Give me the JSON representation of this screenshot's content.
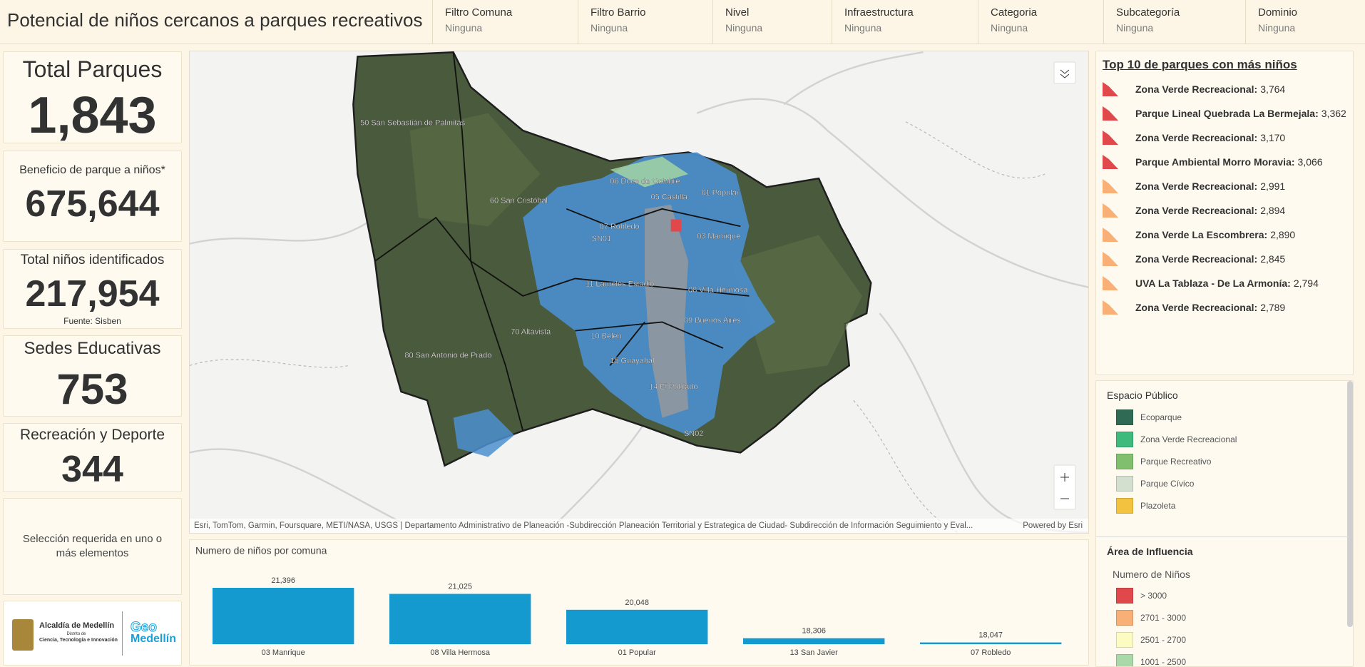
{
  "header": {
    "title": "Potencial de niños cercanos a parques recreativos",
    "filters": [
      {
        "label": "Filtro Comuna",
        "value": "Ninguna"
      },
      {
        "label": "Filtro Barrio",
        "value": "Ninguna"
      },
      {
        "label": "Nivel",
        "value": "Ninguna"
      },
      {
        "label": "Infraestructura",
        "value": "Ninguna"
      },
      {
        "label": "Categoria",
        "value": "Ninguna"
      },
      {
        "label": "Subcategoría",
        "value": "Ninguna"
      },
      {
        "label": "Dominio",
        "value": "Ninguna"
      }
    ]
  },
  "kpis": [
    {
      "label": "Total Parques",
      "value": "1,843"
    },
    {
      "label": "Beneficio de parque a niños*",
      "value": "675,644"
    },
    {
      "label": "Total niños identificados",
      "value": "217,954",
      "note": "Fuente: Sisben"
    },
    {
      "label": "Sedes Educativas",
      "value": "753"
    },
    {
      "label": "Recreación y Deporte",
      "value": "344"
    }
  ],
  "selection_message": "Selección requerida en uno o más elementos",
  "logo": {
    "name": "Alcaldía de Medellín",
    "line1": "Distrito de",
    "line2": "Ciencia, Tecnología e Innovación",
    "brand_top": "Geo",
    "brand_bottom": "Medellín"
  },
  "map": {
    "labels": [
      "50 San Sebastián de Palmitas",
      "60 San Cristóbal",
      "06 Doce de Octubre",
      "05 Castilla",
      "01 Popular",
      "07 Robledo",
      "SN01",
      "03 Manrique",
      "11 Laureles Estadio",
      "08 Villa Hermosa",
      "70 Altavista",
      "10 Belén",
      "09 Buenos Aires",
      "80 San Antonio de Prado",
      "15 Guayabal",
      "14 El Poblado",
      "SN02"
    ],
    "attribution": "Esri, TomTom, Garmin, Foursquare, METI/NASA, USGS | Departamento Administrativo de Planeación -Subdirección Planeación Territorial y Estrategica de Ciudad- Subdirección de Información Seguimiento y Eval...",
    "powered_by": "Powered by Esri"
  },
  "top10": {
    "title": "Top 10 de parques con más niños",
    "items": [
      {
        "name": "Zona Verde Recreacional:",
        "value": "3,764",
        "color": "#e0484b"
      },
      {
        "name": "Parque Lineal Quebrada La Bermejala:",
        "value": "3,362",
        "color": "#e0484b"
      },
      {
        "name": "Zona Verde Recreacional:",
        "value": "3,170",
        "color": "#e0484b"
      },
      {
        "name": "Parque Ambiental Morro Moravia:",
        "value": "3,066",
        "color": "#e0484b"
      },
      {
        "name": "Zona Verde Recreacional:",
        "value": "2,991",
        "color": "#f8b077"
      },
      {
        "name": "Zona Verde Recreacional:",
        "value": "2,894",
        "color": "#f8b077"
      },
      {
        "name": "Zona Verde La Escombrera:",
        "value": "2,890",
        "color": "#f8b077"
      },
      {
        "name": "Zona Verde Recreacional:",
        "value": "2,845",
        "color": "#f8b077"
      },
      {
        "name": "UVA La Tablaza - De La Armonía:",
        "value": "2,794",
        "color": "#f8b077"
      },
      {
        "name": "Zona Verde Recreacional:",
        "value": "2,789",
        "color": "#f8b077"
      }
    ]
  },
  "legend": {
    "public_space": {
      "title": "Espacio Público",
      "items": [
        {
          "label": "Ecoparque",
          "color": "#2f6a55"
        },
        {
          "label": "Zona Verde Recreacional",
          "color": "#3dba7c"
        },
        {
          "label": "Parque Recreativo",
          "color": "#7fbf6e"
        },
        {
          "label": "Parque Cívico",
          "color": "#d3e0cf"
        },
        {
          "label": "Plazoleta",
          "color": "#f3c23e"
        }
      ]
    },
    "influence": {
      "title": "Área de Influencia",
      "subtitle": "Numero de Niños",
      "items": [
        {
          "label": "> 3000",
          "color": "#e0484b"
        },
        {
          "label": "2701 - 3000",
          "color": "#f8b077"
        },
        {
          "label": "2501 - 2700",
          "color": "#fcfbc2"
        },
        {
          "label": "1001 - 2500",
          "color": "#a9d8a9"
        }
      ]
    }
  },
  "chart_data": {
    "type": "bar",
    "title": "Numero de niños por comuna",
    "categories": [
      "03 Manrique",
      "08 Villa Hermosa",
      "01 Popular",
      "13 San Javier",
      "07 Robledo"
    ],
    "values": [
      21396,
      21025,
      20048,
      18306,
      18047
    ],
    "value_labels": [
      "21,396",
      "21,025",
      "20,048",
      "18,306",
      "18,047"
    ],
    "color": "#159ad0",
    "ylim": [
      17940,
      21396
    ]
  }
}
